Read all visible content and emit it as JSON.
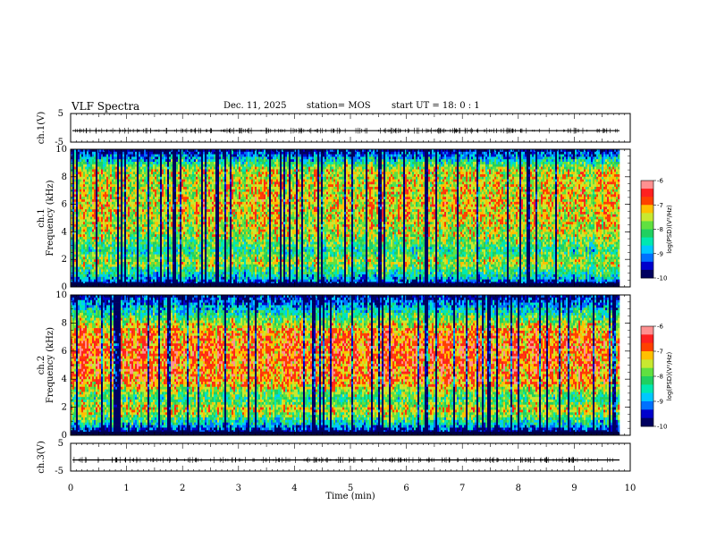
{
  "header": {
    "title": "VLF Spectra",
    "date": "Dec. 11, 2025",
    "station": "station= MOS",
    "start": "start  UT  =   18: 0   : 1"
  },
  "colors": {
    "spectrum": [
      "#000060",
      "#0000cc",
      "#0070ff",
      "#00c8ff",
      "#00e8b0",
      "#20d060",
      "#60e040",
      "#c8e830",
      "#ffc000",
      "#ff4000",
      "#ff2020",
      "#ff9090"
    ]
  },
  "chart_data": [
    {
      "type": "line",
      "name": "ch1-waveform",
      "ylabel": "ch.1(V)",
      "ylim": [
        -5,
        5
      ],
      "yticks": [
        5,
        -5
      ],
      "xlim": [
        0,
        10
      ],
      "values_description": "flat trace near -1 V",
      "level": -1
    },
    {
      "type": "heatmap",
      "name": "ch1-spectrogram",
      "ylabel_top": "ch.1",
      "ylabel": "Frequency (kHz)",
      "ylim": [
        0,
        10
      ],
      "yticks": [
        0,
        2,
        4,
        6,
        8,
        10
      ],
      "xlim": [
        0,
        10
      ],
      "data_until_min": 9.8,
      "colorbar": {
        "label": "log(PSD)(V²/Hz)",
        "range": [
          -10,
          -6
        ],
        "ticks": [
          -6,
          -7,
          -8,
          -9,
          -10
        ]
      },
      "band_profile_logpsd": [
        {
          "f_khz": 0.2,
          "v": -10
        },
        {
          "f_khz": 0.6,
          "v": -8.8
        },
        {
          "f_khz": 1.8,
          "v": -7.6
        },
        {
          "f_khz": 2.6,
          "v": -8.3
        },
        {
          "f_khz": 3.8,
          "v": -7.6
        },
        {
          "f_khz": 6.0,
          "v": -7.3
        },
        {
          "f_khz": 8.5,
          "v": -7.5
        },
        {
          "f_khz": 9.2,
          "v": -8.6
        },
        {
          "f_khz": 10,
          "v": -9.8
        }
      ]
    },
    {
      "type": "heatmap",
      "name": "ch2-spectrogram",
      "ylabel_top": "ch.2",
      "ylabel": "Frequency (kHz)",
      "ylim": [
        0,
        10
      ],
      "yticks": [
        0,
        2,
        4,
        6,
        8,
        10
      ],
      "xlim": [
        0,
        10
      ],
      "data_until_min": 9.8,
      "colorbar": {
        "label": "log(PSD)(V²/Hz)",
        "range": [
          -10,
          -6
        ],
        "ticks": [
          -6,
          -7,
          -8,
          -9,
          -10
        ]
      },
      "band_profile_logpsd": [
        {
          "f_khz": 0.2,
          "v": -10
        },
        {
          "f_khz": 0.8,
          "v": -8.6
        },
        {
          "f_khz": 1.8,
          "v": -7.4
        },
        {
          "f_khz": 2.6,
          "v": -8.2
        },
        {
          "f_khz": 3.8,
          "v": -7.0
        },
        {
          "f_khz": 6.0,
          "v": -6.8
        },
        {
          "f_khz": 7.5,
          "v": -7.1
        },
        {
          "f_khz": 9.0,
          "v": -8.7
        },
        {
          "f_khz": 10,
          "v": -9.8
        }
      ]
    },
    {
      "type": "line",
      "name": "ch3-waveform",
      "ylabel": "ch.3(V)",
      "ylim": [
        -5,
        5
      ],
      "yticks": [
        5,
        -5
      ],
      "xlim": [
        0,
        10
      ],
      "level": -1
    }
  ],
  "xaxis": {
    "label": "Time (min)",
    "ticks": [
      "0",
      "1",
      "2",
      "3",
      "4",
      "5",
      "6",
      "7",
      "8",
      "9",
      "10"
    ]
  }
}
